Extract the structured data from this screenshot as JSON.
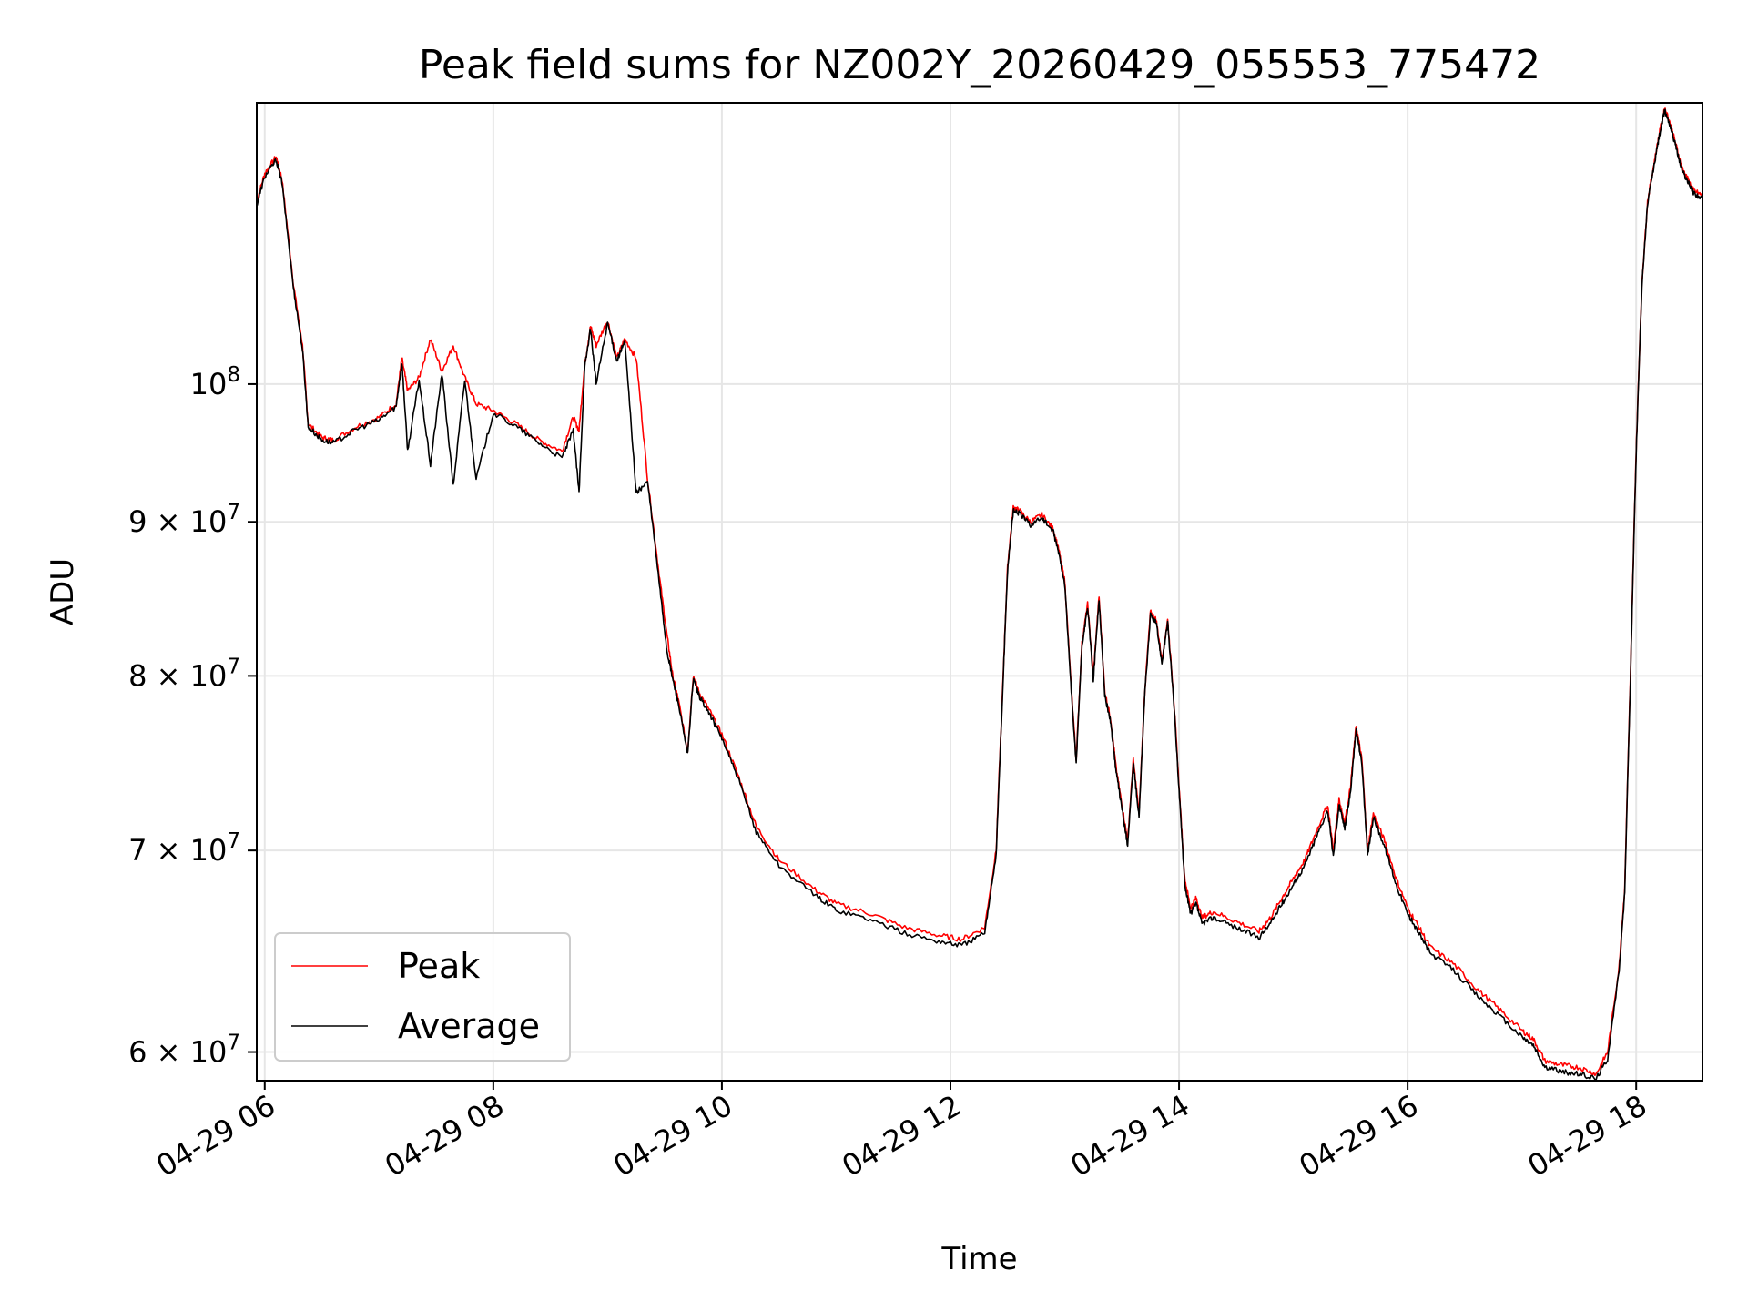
{
  "chart_data": {
    "type": "line",
    "title": "Peak field sums for NZ002Y_20260429_055553_775472",
    "xlabel": "Time",
    "ylabel": "ADU",
    "yscale": "log",
    "xlim": [
      5.93,
      18.58
    ],
    "ylim": [
      58700000,
      124000000
    ],
    "grid": true,
    "legend_position": "lower-left",
    "x_ticks": [
      {
        "value": 6,
        "label": "04-29 06"
      },
      {
        "value": 8,
        "label": "04-29 08"
      },
      {
        "value": 10,
        "label": "04-29 10"
      },
      {
        "value": 12,
        "label": "04-29 12"
      },
      {
        "value": 14,
        "label": "04-29 14"
      },
      {
        "value": 16,
        "label": "04-29 16"
      },
      {
        "value": 18,
        "label": "04-29 18"
      }
    ],
    "y_ticks": [
      {
        "value": 60000000,
        "mant": "6",
        "label": "6 × 10^7"
      },
      {
        "value": 70000000,
        "mant": "7",
        "label": "7 × 10^7"
      },
      {
        "value": 80000000,
        "mant": "8",
        "label": "8 × 10^7"
      },
      {
        "value": 90000000,
        "mant": "9",
        "label": "9 × 10^7"
      },
      {
        "value": 100000000,
        "mant": "",
        "label": "10^8"
      }
    ],
    "series": [
      {
        "name": "Peak",
        "color": "#ff0000",
        "x": [
          5.93,
          6.0,
          6.1,
          6.15,
          6.25,
          6.33,
          6.38,
          6.5,
          6.6,
          6.8,
          7.0,
          7.15,
          7.2,
          7.25,
          7.35,
          7.45,
          7.55,
          7.65,
          7.75,
          7.85,
          8.0,
          8.2,
          8.4,
          8.6,
          8.7,
          8.75,
          8.8,
          8.85,
          8.9,
          9.0,
          9.08,
          9.15,
          9.25,
          9.35,
          9.45,
          9.52,
          9.57,
          9.62,
          9.7,
          9.75,
          9.8,
          9.9,
          10.0,
          10.15,
          10.3,
          10.5,
          10.8,
          11.0,
          11.3,
          11.6,
          11.9,
          12.1,
          12.3,
          12.4,
          12.45,
          12.5,
          12.55,
          12.6,
          12.7,
          12.8,
          12.9,
          12.95,
          13.0,
          13.05,
          13.1,
          13.15,
          13.2,
          13.25,
          13.3,
          13.35,
          13.4,
          13.45,
          13.5,
          13.55,
          13.6,
          13.65,
          13.7,
          13.75,
          13.8,
          13.85,
          13.9,
          13.95,
          14.0,
          14.05,
          14.1,
          14.15,
          14.2,
          14.3,
          14.5,
          14.7,
          14.8,
          14.9,
          15.0,
          15.1,
          15.2,
          15.3,
          15.35,
          15.4,
          15.45,
          15.5,
          15.55,
          15.6,
          15.65,
          15.7,
          15.8,
          15.9,
          16.0,
          16.1,
          16.2,
          16.4,
          16.6,
          16.8,
          17.0,
          17.1,
          17.2,
          17.35,
          17.5,
          17.65,
          17.75,
          17.85,
          17.9,
          17.95,
          18.0,
          18.05,
          18.1,
          18.15,
          18.2,
          18.25,
          18.3,
          18.35,
          18.4,
          18.45,
          18.5,
          18.58
        ],
        "values": [
          115000000,
          117500000,
          119000000,
          117000000,
          108000000,
          103000000,
          97000000,
          96000000,
          95800000,
          96800000,
          97500000,
          98500000,
          102000000,
          99500000,
          100500000,
          103500000,
          101000000,
          103000000,
          100500000,
          98500000,
          98000000,
          97000000,
          95800000,
          95000000,
          97500000,
          96500000,
          101500000,
          104500000,
          103000000,
          105000000,
          102000000,
          103500000,
          102000000,
          93000000,
          86500000,
          82500000,
          80000000,
          78500000,
          75500000,
          80000000,
          79000000,
          77800000,
          76500000,
          74000000,
          71300000,
          69500000,
          68000000,
          67200000,
          66700000,
          66000000,
          65600000,
          65400000,
          66000000,
          70000000,
          78000000,
          87000000,
          91000000,
          90800000,
          90000000,
          90500000,
          89500000,
          88000000,
          86000000,
          80000000,
          75000000,
          82000000,
          84500000,
          80000000,
          85000000,
          79000000,
          77500000,
          74500000,
          72500000,
          70500000,
          75000000,
          72000000,
          79000000,
          84000000,
          83500000,
          81000000,
          83500000,
          79000000,
          73500000,
          68500000,
          67000000,
          67500000,
          66500000,
          66800000,
          66300000,
          65800000,
          66500000,
          67500000,
          68500000,
          69500000,
          71000000,
          72500000,
          70000000,
          72800000,
          71500000,
          73500000,
          77000000,
          75000000,
          70000000,
          72000000,
          70500000,
          68500000,
          67000000,
          66000000,
          65000000,
          64200000,
          63000000,
          62000000,
          61000000,
          60600000,
          59600000,
          59400000,
          59300000,
          59000000,
          60000000,
          64000000,
          68000000,
          80000000,
          95000000,
          108000000,
          115000000,
          118000000,
          121000000,
          123500000,
          122000000,
          120000000,
          118000000,
          117000000,
          116000000,
          115500000
        ]
      },
      {
        "name": "Average",
        "color": "#000000",
        "x": [
          5.93,
          6.0,
          6.1,
          6.15,
          6.25,
          6.33,
          6.38,
          6.5,
          6.6,
          6.8,
          7.0,
          7.15,
          7.2,
          7.25,
          7.35,
          7.45,
          7.55,
          7.65,
          7.75,
          7.85,
          8.0,
          8.2,
          8.4,
          8.6,
          8.7,
          8.75,
          8.8,
          8.85,
          8.9,
          9.0,
          9.08,
          9.15,
          9.25,
          9.35,
          9.45,
          9.52,
          9.57,
          9.62,
          9.7,
          9.75,
          9.8,
          9.9,
          10.0,
          10.15,
          10.3,
          10.5,
          10.8,
          11.0,
          11.3,
          11.6,
          11.9,
          12.1,
          12.3,
          12.4,
          12.45,
          12.5,
          12.55,
          12.6,
          12.7,
          12.8,
          12.9,
          12.95,
          13.0,
          13.05,
          13.1,
          13.15,
          13.2,
          13.25,
          13.3,
          13.35,
          13.4,
          13.45,
          13.5,
          13.55,
          13.6,
          13.65,
          13.7,
          13.75,
          13.8,
          13.85,
          13.9,
          13.95,
          14.0,
          14.05,
          14.1,
          14.15,
          14.2,
          14.3,
          14.5,
          14.7,
          14.8,
          14.9,
          15.0,
          15.1,
          15.2,
          15.3,
          15.35,
          15.4,
          15.45,
          15.5,
          15.55,
          15.6,
          15.65,
          15.7,
          15.8,
          15.9,
          16.0,
          16.1,
          16.2,
          16.4,
          16.6,
          16.8,
          17.0,
          17.1,
          17.2,
          17.35,
          17.5,
          17.65,
          17.75,
          17.85,
          17.9,
          17.95,
          18.0,
          18.05,
          18.1,
          18.15,
          18.2,
          18.25,
          18.3,
          18.35,
          18.4,
          18.45,
          18.5,
          18.58
        ],
        "values": [
          114700000,
          117200000,
          118700000,
          116700000,
          107700000,
          102700000,
          96800000,
          95800000,
          95600000,
          96600000,
          97300000,
          98300000,
          101700000,
          95000000,
          100300000,
          94000000,
          100800000,
          92500000,
          100300000,
          93000000,
          97800000,
          96800000,
          95600000,
          94500000,
          96500000,
          92000000,
          101300000,
          104300000,
          100000000,
          104800000,
          101800000,
          103300000,
          92000000,
          92800000,
          86000000,
          81500000,
          79800000,
          78300000,
          75300000,
          79800000,
          78800000,
          77600000,
          76300000,
          73800000,
          71000000,
          69200000,
          67700000,
          66900000,
          66400000,
          65700000,
          65300000,
          65100000,
          65700000,
          69800000,
          77800000,
          86800000,
          90800000,
          90600000,
          89800000,
          90300000,
          89300000,
          87800000,
          85800000,
          79800000,
          74800000,
          81800000,
          84300000,
          79800000,
          84800000,
          78800000,
          77300000,
          74300000,
          72300000,
          70300000,
          74800000,
          71800000,
          78800000,
          83800000,
          83300000,
          80800000,
          83300000,
          78800000,
          73300000,
          68200000,
          66700000,
          67200000,
          66200000,
          66500000,
          66000000,
          65500000,
          66200000,
          67200000,
          68200000,
          69200000,
          70700000,
          72200000,
          69700000,
          72500000,
          71200000,
          73200000,
          76800000,
          74800000,
          69700000,
          71800000,
          70200000,
          68200000,
          66700000,
          65700000,
          64700000,
          63900000,
          62700000,
          61700000,
          60700000,
          60300000,
          59300000,
          59100000,
          59000000,
          58800000,
          59700000,
          63800000,
          67800000,
          79800000,
          94800000,
          107800000,
          114800000,
          117800000,
          120800000,
          123300000,
          121800000,
          119800000,
          117800000,
          116800000,
          115800000,
          115200000
        ]
      }
    ]
  }
}
